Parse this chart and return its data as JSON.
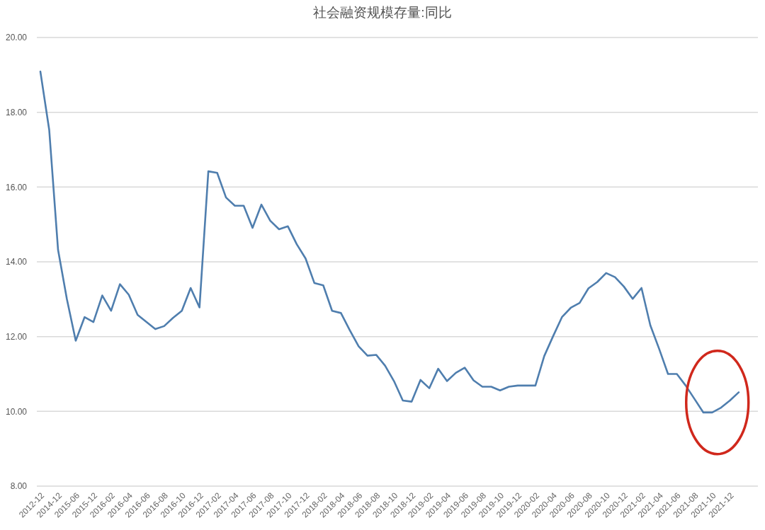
{
  "chart_data": {
    "type": "line",
    "title": "社会融资规模存量:同比",
    "categories": [
      "2012-12",
      null,
      "2014-12",
      null,
      "2015-06",
      null,
      "2015-12",
      null,
      "2016-02",
      null,
      "2016-04",
      null,
      "2016-06",
      null,
      "2016-08",
      null,
      "2016-10",
      null,
      "2016-12",
      null,
      "2017-02",
      null,
      "2017-04",
      null,
      "2017-06",
      null,
      "2017-08",
      null,
      "2017-10",
      null,
      "2017-12",
      null,
      "2018-02",
      null,
      "2018-04",
      null,
      "2018-06",
      null,
      "2018-08",
      null,
      "2018-10",
      null,
      "2018-12",
      null,
      "2019-02",
      null,
      "2019-04",
      null,
      "2019-06",
      null,
      "2019-08",
      null,
      "2019-10",
      null,
      "2019-12",
      null,
      "2020-02",
      null,
      "2020-04",
      null,
      "2020-06",
      null,
      "2020-08",
      null,
      "2020-10",
      null,
      "2020-12",
      null,
      "2021-02",
      null,
      "2021-04",
      null,
      "2021-06",
      null,
      "2021-08",
      null,
      "2021-10",
      null,
      "2021-12",
      null
    ],
    "series": [
      {
        "color": "#4f7eae",
        "values": [
          19.09,
          17.53,
          14.32,
          13.0,
          11.89,
          12.52,
          12.39,
          13.1,
          12.69,
          13.4,
          13.12,
          12.58,
          12.39,
          12.2,
          12.28,
          12.5,
          12.69,
          13.3,
          12.78,
          16.42,
          16.38,
          15.72,
          15.5,
          15.5,
          14.91,
          15.53,
          15.1,
          14.87,
          14.95,
          14.47,
          14.09,
          13.43,
          13.37,
          12.69,
          12.63,
          12.17,
          11.74,
          11.49,
          11.51,
          11.22,
          10.81,
          10.29,
          10.26,
          10.84,
          10.62,
          11.14,
          10.81,
          11.03,
          11.17,
          10.83,
          10.66,
          10.66,
          10.56,
          10.66,
          10.69,
          10.69,
          10.69,
          11.48,
          12.01,
          12.52,
          12.77,
          12.9,
          13.29,
          13.46,
          13.7,
          13.59,
          13.34,
          13.01,
          13.3,
          12.3,
          11.67,
          11.0,
          11.0,
          10.69,
          10.33,
          9.97,
          9.97,
          10.1,
          10.29,
          10.51
        ]
      }
    ],
    "ylim": [
      8,
      20
    ],
    "yticks": [
      {
        "value": 8,
        "label": "8.00"
      },
      {
        "value": 10,
        "label": "10.00"
      },
      {
        "value": 12,
        "label": "12.00"
      },
      {
        "value": 14,
        "label": "14.00"
      },
      {
        "value": 16,
        "label": "16.00"
      },
      {
        "value": 18,
        "label": "18.00"
      },
      {
        "value": 20,
        "label": "20.00"
      }
    ],
    "grid": "y",
    "marker": "none",
    "line_style": "solid"
  }
}
